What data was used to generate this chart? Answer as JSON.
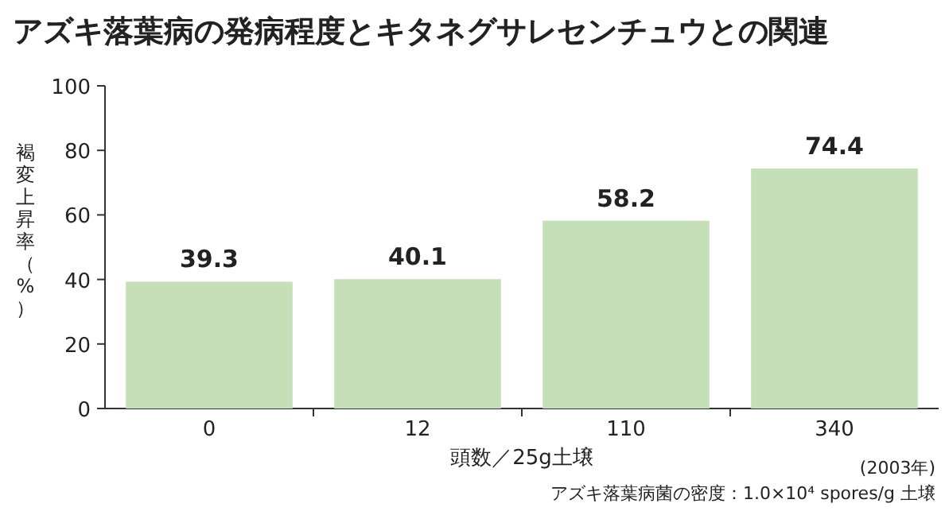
{
  "chart_data": {
    "type": "bar",
    "title": "アズキ落葉病の発病程度とキタネグサレセンチュウとの関連",
    "xlabel": "頭数／25g土壌",
    "ylabel": "褐変上昇率（%）",
    "categories": [
      "0",
      "12",
      "110",
      "340"
    ],
    "values": [
      39.3,
      40.1,
      58.2,
      74.4
    ],
    "color": "#c5e0b8",
    "ylim": [
      0,
      100
    ],
    "yticks": [
      0,
      20,
      40,
      60,
      80,
      100
    ],
    "data_labels": true,
    "annotations": [
      "(2003年)",
      "アズキ落葉病菌の密度：1.0×10⁴ spores/g 土壌"
    ]
  }
}
